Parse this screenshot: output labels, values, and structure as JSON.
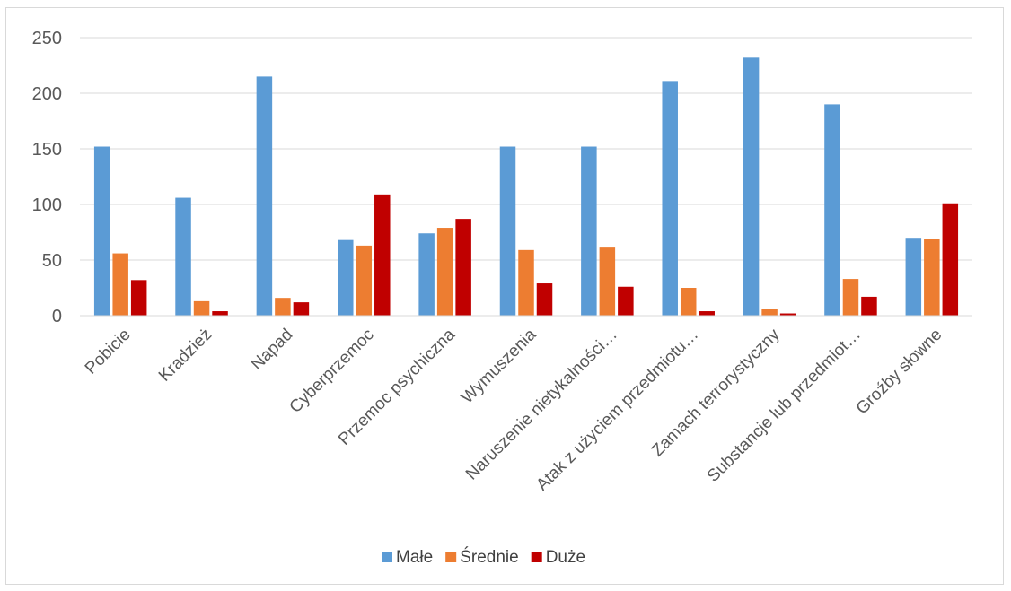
{
  "chart_data": {
    "type": "bar",
    "categories": [
      "Pobicie",
      "Kradzież",
      "Napad",
      "Cyberprzemoc",
      "Przemoc psychiczna",
      "Wymuszenia",
      "Naruszenie nietykalności…",
      "Atak z użyciem przedmiotu…",
      "Zamach terrorystyczny",
      "Substancje lub przedmiot…",
      "Groźby słowne"
    ],
    "series": [
      {
        "name": "Małe",
        "color": "#5b9bd5",
        "values": [
          152,
          106,
          215,
          68,
          74,
          152,
          152,
          211,
          232,
          190,
          70
        ]
      },
      {
        "name": "Średnie",
        "color": "#ed7d31",
        "values": [
          56,
          13,
          16,
          63,
          79,
          59,
          62,
          25,
          6,
          33,
          69
        ]
      },
      {
        "name": "Duże",
        "color": "#c00000",
        "values": [
          32,
          4,
          12,
          109,
          87,
          29,
          26,
          4,
          2,
          17,
          101
        ]
      }
    ],
    "yticks": [
      "0",
      "50",
      "100",
      "150",
      "200",
      "250"
    ],
    "ylim": [
      0,
      250
    ],
    "grid": true,
    "legend": "bottom"
  }
}
